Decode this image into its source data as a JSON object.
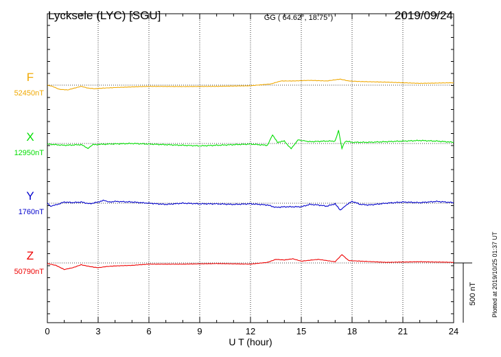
{
  "header": {
    "station": "Lycksele (LYC)  [SGU]",
    "coords": "GG ( 64.62°,  18.75°)",
    "date": "2019/09/24"
  },
  "footer": {
    "plotted": "Plotted at 2019/10/25 01:37 UT"
  },
  "chart_data": {
    "type": "line",
    "xlabel": "U T (hour)",
    "xlim": [
      0,
      24
    ],
    "xticks": [
      "0",
      "3",
      "6",
      "9",
      "12",
      "15",
      "18",
      "21",
      "24"
    ],
    "scale_bar": {
      "label": "500 nT",
      "value_nT": 500
    },
    "colors": {
      "F": "#f0a800",
      "X": "#00dd00",
      "Y": "#0000cc",
      "Z": "#ee0000"
    },
    "series": [
      {
        "name": "F",
        "baseline_label": "52450nT",
        "baseline_nT": 52450,
        "points": [
          [
            0,
            0
          ],
          [
            0.3,
            -10
          ],
          [
            0.7,
            -35
          ],
          [
            1.2,
            -40
          ],
          [
            1.6,
            -25
          ],
          [
            2.0,
            -10
          ],
          [
            2.4,
            -25
          ],
          [
            2.8,
            -30
          ],
          [
            3.3,
            -25
          ],
          [
            4,
            -20
          ],
          [
            5,
            -15
          ],
          [
            6,
            -10
          ],
          [
            8,
            -12
          ],
          [
            10,
            -10
          ],
          [
            12,
            -5
          ],
          [
            13.2,
            10
          ],
          [
            13.8,
            35
          ],
          [
            14.5,
            35
          ],
          [
            15.5,
            40
          ],
          [
            16.5,
            35
          ],
          [
            17.3,
            50
          ],
          [
            17.8,
            35
          ],
          [
            18.5,
            30
          ],
          [
            20,
            25
          ],
          [
            22,
            15
          ],
          [
            24,
            20
          ]
        ]
      },
      {
        "name": "X",
        "baseline_label": "12950nT",
        "baseline_nT": 12950,
        "points": [
          [
            0,
            -5
          ],
          [
            1,
            -15
          ],
          [
            2,
            -10
          ],
          [
            2.4,
            -40
          ],
          [
            2.7,
            -10
          ],
          [
            3.5,
            -5
          ],
          [
            5,
            0
          ],
          [
            6,
            -5
          ],
          [
            8,
            -15
          ],
          [
            9,
            -20
          ],
          [
            10,
            -15
          ],
          [
            11,
            -10
          ],
          [
            12,
            -5
          ],
          [
            13,
            -15
          ],
          [
            13.3,
            70
          ],
          [
            13.6,
            10
          ],
          [
            14,
            20
          ],
          [
            14.4,
            -45
          ],
          [
            14.8,
            30
          ],
          [
            15.5,
            15
          ],
          [
            16.5,
            20
          ],
          [
            17.0,
            20
          ],
          [
            17.2,
            110
          ],
          [
            17.4,
            -40
          ],
          [
            17.6,
            20
          ],
          [
            18,
            10
          ],
          [
            19,
            10
          ],
          [
            20,
            15
          ],
          [
            21,
            20
          ],
          [
            22,
            25
          ],
          [
            23,
            20
          ],
          [
            24,
            10
          ]
        ]
      },
      {
        "name": "Y",
        "baseline_label": "1760nT",
        "baseline_nT": 1760,
        "points": [
          [
            0,
            0
          ],
          [
            0.2,
            -25
          ],
          [
            0.5,
            -15
          ],
          [
            1,
            10
          ],
          [
            1.5,
            5
          ],
          [
            2,
            10
          ],
          [
            2.5,
            -5
          ],
          [
            3,
            10
          ],
          [
            3.3,
            25
          ],
          [
            3.6,
            10
          ],
          [
            4,
            15
          ],
          [
            5,
            10
          ],
          [
            6,
            0
          ],
          [
            7,
            -10
          ],
          [
            8,
            0
          ],
          [
            9,
            -5
          ],
          [
            10,
            -5
          ],
          [
            11,
            -10
          ],
          [
            12,
            -5
          ],
          [
            13,
            -15
          ],
          [
            13.5,
            -35
          ],
          [
            14,
            -30
          ],
          [
            15,
            -30
          ],
          [
            15.5,
            -10
          ],
          [
            16,
            -15
          ],
          [
            16.5,
            -25
          ],
          [
            17,
            -5
          ],
          [
            17.3,
            -60
          ],
          [
            17.6,
            -20
          ],
          [
            18,
            15
          ],
          [
            18.5,
            -10
          ],
          [
            19,
            -15
          ],
          [
            20,
            0
          ],
          [
            21,
            10
          ],
          [
            22,
            5
          ],
          [
            23,
            15
          ],
          [
            24,
            5
          ]
        ]
      },
      {
        "name": "Z",
        "baseline_label": "50790nT",
        "baseline_nT": 50790,
        "points": [
          [
            0,
            -5
          ],
          [
            0.5,
            -20
          ],
          [
            1,
            -55
          ],
          [
            1.5,
            -40
          ],
          [
            2,
            -15
          ],
          [
            2.5,
            -30
          ],
          [
            3,
            -40
          ],
          [
            3.5,
            -30
          ],
          [
            4,
            -25
          ],
          [
            5,
            -20
          ],
          [
            6,
            -10
          ],
          [
            8,
            -10
          ],
          [
            10,
            -5
          ],
          [
            12,
            -10
          ],
          [
            13,
            5
          ],
          [
            13.5,
            30
          ],
          [
            14,
            25
          ],
          [
            14.5,
            35
          ],
          [
            15,
            15
          ],
          [
            16,
            30
          ],
          [
            17,
            10
          ],
          [
            17.4,
            70
          ],
          [
            17.8,
            20
          ],
          [
            18.5,
            15
          ],
          [
            20,
            5
          ],
          [
            22,
            10
          ],
          [
            24,
            5
          ]
        ]
      }
    ]
  }
}
